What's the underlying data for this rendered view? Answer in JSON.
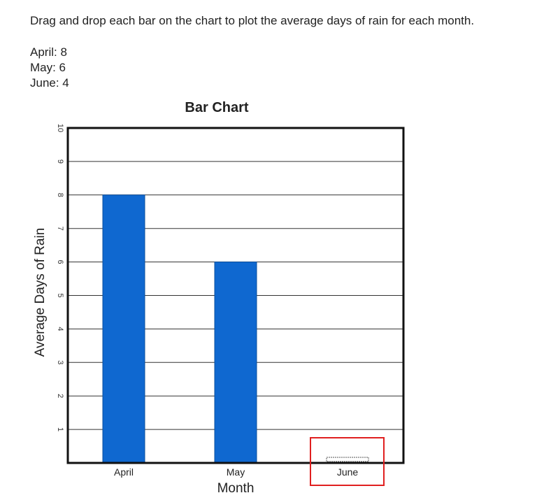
{
  "instructions": "Drag and drop each bar on the chart to plot the average days of rain for each month.",
  "given_values": [
    {
      "label": "April: 8"
    },
    {
      "label": "May: 6"
    },
    {
      "label": "June: 4"
    }
  ],
  "chart_data": {
    "type": "bar",
    "title": "Bar Chart",
    "xlabel": "Month",
    "ylabel": "Average Days of Rain",
    "categories": [
      "April",
      "May",
      "June"
    ],
    "values": [
      8,
      6,
      0
    ],
    "ylim": [
      0,
      10
    ],
    "yticks": [
      1,
      2,
      3,
      4,
      5,
      6,
      7,
      8,
      9,
      10
    ],
    "grid": true,
    "colors": {
      "bar": "#0f68d0",
      "bar_stroke": "#0b4f9e",
      "axis": "#111111",
      "grid": "#333333",
      "highlight": "#e02020"
    },
    "highlighted_category": "June"
  }
}
